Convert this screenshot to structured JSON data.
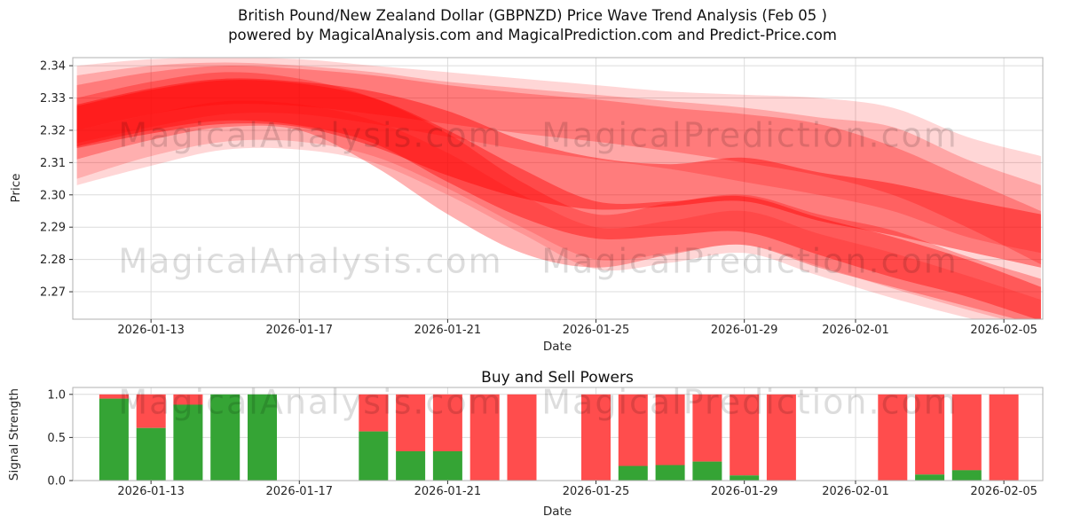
{
  "title": {
    "line1": "British Pound/New Zealand Dollar (GBPNZD) Price Wave Trend Analysis (Feb 05 )",
    "line2": "powered by MagicalAnalysis.com and MagicalPrediction.com and Predict-Price.com"
  },
  "watermarks": {
    "left": "MagicalAnalysis.com",
    "right": "MagicalPrediction.com"
  },
  "colors": {
    "band_red": "#ff0000",
    "bar_red": "#ff4d4d",
    "bar_green": "#35a435",
    "grid": "#dcdcdc",
    "spine": "#b0b0b0",
    "tick": "#333333"
  },
  "chart_data": [
    {
      "type": "area",
      "name": "price-wave-trend",
      "ylabel": "Price",
      "xlabel": "Date",
      "ylim": [
        2.2615,
        2.3425
      ],
      "yticks": [
        "2.34",
        "2.33",
        "2.32",
        "2.31",
        "2.30",
        "2.29",
        "2.28",
        "2.27"
      ],
      "xticks": [
        "2026-01-13",
        "2026-01-17",
        "2026-01-21",
        "2026-01-25",
        "2026-01-29",
        "2026-02-01",
        "2026-02-05"
      ],
      "x_dates": [
        "2026-01-11",
        "2026-01-13",
        "2026-01-15",
        "2026-01-17",
        "2026-01-19",
        "2026-01-21",
        "2026-01-23",
        "2026-01-25",
        "2026-01-27",
        "2026-01-29",
        "2026-01-31",
        "2026-02-02",
        "2026-02-04",
        "2026-02-06"
      ],
      "bands": [
        {
          "name": "outer-envelope",
          "opacity": 0.16,
          "lower": [
            2.303,
            2.309,
            2.314,
            2.314,
            2.31,
            2.3,
            2.288,
            2.277,
            2.279,
            2.282,
            2.275,
            2.268,
            2.262,
            2.257
          ],
          "upper": [
            2.34,
            2.342,
            2.3425,
            2.342,
            2.34,
            2.338,
            2.336,
            2.334,
            2.332,
            2.331,
            2.33,
            2.327,
            2.318,
            2.312
          ]
        },
        {
          "name": "upper-band",
          "opacity": 0.22,
          "lower": [
            2.316,
            2.321,
            2.325,
            2.325,
            2.322,
            2.318,
            2.314,
            2.311,
            2.308,
            2.304,
            2.3,
            2.295,
            2.287,
            2.282
          ],
          "upper": [
            2.337,
            2.34,
            2.341,
            2.34,
            2.338,
            2.335,
            2.333,
            2.331,
            2.329,
            2.327,
            2.324,
            2.321,
            2.311,
            2.303
          ]
        },
        {
          "name": "late-decline-band",
          "opacity": 0.26,
          "lower": [
            2.32,
            2.325,
            2.328,
            2.3275,
            2.325,
            2.322,
            2.319,
            2.3165,
            2.3135,
            2.31,
            2.306,
            2.3,
            2.29,
            2.2785
          ],
          "upper": [
            2.334,
            2.338,
            2.34,
            2.339,
            2.337,
            2.334,
            2.3315,
            2.3295,
            2.327,
            2.325,
            2.322,
            2.315,
            2.305,
            2.295
          ]
        },
        {
          "name": "core-band",
          "opacity": 0.42,
          "lower": [
            2.3145,
            2.319,
            2.322,
            2.321,
            2.315,
            2.306,
            2.299,
            2.2955,
            2.2965,
            2.298,
            2.292,
            2.2875,
            2.2825,
            2.2775
          ],
          "upper": [
            2.328,
            2.333,
            2.336,
            2.335,
            2.332,
            2.326,
            2.317,
            2.3115,
            2.3095,
            2.3115,
            2.307,
            2.3035,
            2.2985,
            2.294
          ]
        },
        {
          "name": "mid-drop-band",
          "opacity": 0.3,
          "lower": [
            2.311,
            2.317,
            2.321,
            2.32,
            2.309,
            2.294,
            2.282,
            2.2775,
            2.2815,
            2.2845,
            2.2775,
            2.2715,
            2.2655,
            2.2595
          ],
          "upper": [
            2.33,
            2.335,
            2.338,
            2.336,
            2.33,
            2.319,
            2.304,
            2.294,
            2.2975,
            2.3,
            2.294,
            2.289,
            2.281,
            2.274
          ]
        },
        {
          "name": "lower-stripe",
          "opacity": 0.4,
          "lower": [
            2.315,
            2.32,
            2.323,
            2.3215,
            2.316,
            2.304,
            2.293,
            2.2865,
            2.2875,
            2.2885,
            2.2815,
            2.2745,
            2.2685,
            2.261
          ],
          "upper": [
            2.3275,
            2.3325,
            2.3355,
            2.3345,
            2.33,
            2.32,
            2.308,
            2.298,
            2.298,
            2.2995,
            2.293,
            2.287,
            2.28,
            2.2715
          ]
        },
        {
          "name": "light-low-wedge",
          "opacity": 0.18,
          "lower": [
            2.305,
            2.312,
            2.3165,
            2.3165,
            2.312,
            2.302,
            2.29,
            2.28,
            2.282,
            2.2845,
            2.278,
            2.271,
            2.2645,
            2.2585
          ],
          "upper": [
            2.32,
            2.325,
            2.329,
            2.328,
            2.323,
            2.313,
            2.3,
            2.29,
            2.292,
            2.295,
            2.288,
            2.282,
            2.275,
            2.2675
          ]
        }
      ]
    },
    {
      "type": "bar",
      "name": "buy-sell-powers",
      "title": "Buy and Sell Powers",
      "ylabel": "Signal Strength",
      "xlabel": "Date",
      "ylim": [
        0,
        1.08
      ],
      "yticks": [
        "0.0",
        "0.5",
        "1.0"
      ],
      "xticks": [
        "2026-01-13",
        "2026-01-17",
        "2026-01-21",
        "2026-01-25",
        "2026-01-29",
        "2026-02-01",
        "2026-02-05"
      ],
      "series": [
        {
          "name": "buy",
          "color_key": "bar_green"
        },
        {
          "name": "sell",
          "color_key": "bar_red"
        }
      ],
      "bars": [
        {
          "date": "2026-01-12",
          "buy": 0.95,
          "sell": 0.05
        },
        {
          "date": "2026-01-13",
          "buy": 0.61,
          "sell": 0.39
        },
        {
          "date": "2026-01-14",
          "buy": 0.88,
          "sell": 0.12
        },
        {
          "date": "2026-01-15",
          "buy": 1.0,
          "sell": 0.0
        },
        {
          "date": "2026-01-16",
          "buy": 1.0,
          "sell": 0.0
        },
        {
          "date": "2026-01-19",
          "buy": 0.57,
          "sell": 0.43
        },
        {
          "date": "2026-01-20",
          "buy": 0.34,
          "sell": 0.66
        },
        {
          "date": "2026-01-21",
          "buy": 0.34,
          "sell": 0.66
        },
        {
          "date": "2026-01-22",
          "buy": 0.0,
          "sell": 1.0
        },
        {
          "date": "2026-01-23",
          "buy": 0.0,
          "sell": 1.0
        },
        {
          "date": "2026-01-25",
          "buy": 0.0,
          "sell": 1.0
        },
        {
          "date": "2026-01-26",
          "buy": 0.17,
          "sell": 0.83
        },
        {
          "date": "2026-01-27",
          "buy": 0.18,
          "sell": 0.82
        },
        {
          "date": "2026-01-28",
          "buy": 0.22,
          "sell": 0.78
        },
        {
          "date": "2026-01-29",
          "buy": 0.06,
          "sell": 0.94
        },
        {
          "date": "2026-01-30",
          "buy": 0.0,
          "sell": 1.0
        },
        {
          "date": "2026-02-02",
          "buy": 0.0,
          "sell": 1.0
        },
        {
          "date": "2026-02-03",
          "buy": 0.07,
          "sell": 0.93
        },
        {
          "date": "2026-02-04",
          "buy": 0.12,
          "sell": 0.88
        },
        {
          "date": "2026-02-05",
          "buy": 0.0,
          "sell": 1.0
        }
      ]
    }
  ]
}
